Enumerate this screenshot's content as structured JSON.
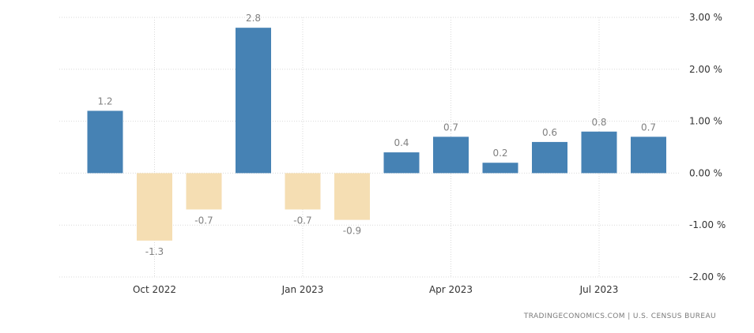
{
  "chart_data": {
    "type": "bar",
    "categories": [
      "Sep 2022",
      "Oct 2022",
      "Nov 2022",
      "Dec 2022",
      "Jan 2023",
      "Feb 2023",
      "Mar 2023",
      "Apr 2023",
      "May 2023",
      "Jun 2023",
      "Jul 2023",
      "Aug 2023"
    ],
    "values": [
      1.2,
      -1.3,
      -0.7,
      2.8,
      -0.7,
      -0.9,
      0.4,
      0.7,
      0.2,
      0.6,
      0.8,
      0.7
    ],
    "data_labels": [
      "1.2",
      "-1.3",
      "-0.7",
      "2.8",
      "-0.7",
      "-0.9",
      "0.4",
      "0.7",
      "0.2",
      "0.6",
      "0.8",
      "0.7"
    ],
    "x_tick_labels": [
      {
        "label": "Oct 2022",
        "date": "2022-10-01"
      },
      {
        "label": "Jan 2023",
        "date": "2023-01-01"
      },
      {
        "label": "Apr 2023",
        "date": "2023-04-01"
      },
      {
        "label": "Jul 2023",
        "date": "2023-07-01"
      }
    ],
    "y_ticks": [
      3,
      2,
      1,
      0,
      -1,
      -2
    ],
    "y_tick_labels": [
      "3.00 %",
      "2.00 %",
      "1.00 %",
      "0.00 %",
      "-1.00 %",
      "-2.00 %"
    ],
    "ylim": [
      -2,
      3
    ],
    "y_axis_side": "right",
    "grid": true,
    "title": "",
    "xlabel": "",
    "ylabel": "",
    "colors": {
      "positive": "#4682b4",
      "negative": "#f5deb3"
    }
  },
  "source": "TRADINGECONOMICS.COM  |  U.S. CENSUS BUREAU"
}
